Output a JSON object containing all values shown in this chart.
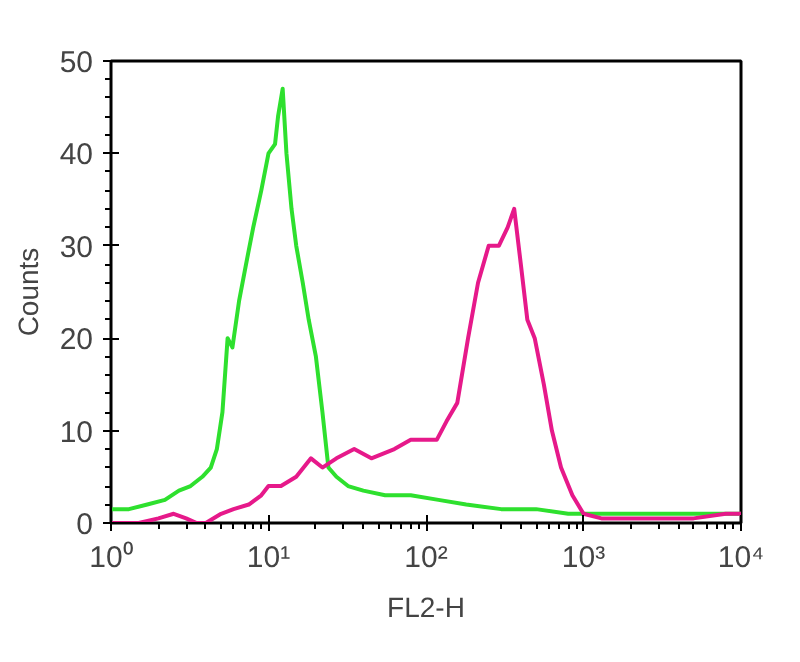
{
  "chart_data": {
    "type": "line",
    "xlabel": "FL2-H",
    "ylabel": "Counts",
    "log": "x",
    "grid": false,
    "marker": "none",
    "line_style": "solid",
    "xlim": [
      1,
      10000
    ],
    "ylim": [
      0,
      50
    ],
    "xticks": [
      {
        "value": 1,
        "label": "10⁰"
      },
      {
        "value": 10,
        "label": "10¹"
      },
      {
        "value": 100,
        "label": "10²"
      },
      {
        "value": 1000,
        "label": "10³"
      },
      {
        "value": 10000,
        "label": "10⁴"
      }
    ],
    "yticks": [
      0,
      10,
      20,
      30,
      40,
      50
    ],
    "series": [
      {
        "color": "#2ee02e",
        "x": [
          1,
          1.3,
          1.7,
          2.2,
          2.7,
          3.2,
          3.8,
          4.3,
          4.7,
          5.1,
          5.5,
          5.9,
          6.5,
          7.2,
          8,
          9,
          10,
          11,
          11.5,
          12.3,
          13,
          14,
          15,
          16.5,
          18,
          20,
          22,
          24,
          27,
          32,
          40,
          55,
          80,
          120,
          180,
          300,
          500,
          800,
          1500,
          3000,
          6000,
          10000
        ],
        "values": [
          1.5,
          1.5,
          2,
          2.5,
          3.5,
          4,
          5,
          6,
          8,
          12,
          20,
          19,
          24,
          28,
          32,
          36,
          40,
          41,
          44,
          47,
          40,
          34,
          30,
          26,
          22,
          18,
          12,
          6,
          5,
          4,
          3.5,
          3,
          3,
          2.5,
          2,
          1.5,
          1.5,
          1,
          1,
          1,
          1,
          1
        ]
      },
      {
        "color": "#e6198a",
        "x": [
          1,
          1.5,
          2,
          2.5,
          3,
          3.5,
          4,
          5,
          6,
          7.5,
          9,
          10,
          12,
          15,
          18.6,
          22,
          27,
          35,
          45,
          63,
          80,
          100,
          117,
          135,
          158,
          185,
          214,
          250,
          290,
          330,
          363,
          400,
          440,
          490,
          560,
          630,
          720,
          850,
          1000,
          1300,
          2000,
          3000,
          5000,
          8000,
          10000
        ],
        "values": [
          0,
          0,
          0.5,
          1,
          0.5,
          0,
          0,
          1,
          1.5,
          2,
          3,
          4,
          4,
          5,
          7,
          6,
          7,
          8,
          7,
          8,
          9,
          9,
          9,
          11,
          13,
          20,
          26,
          30,
          30,
          32,
          34,
          28,
          22,
          20,
          15,
          10,
          6,
          3,
          1,
          0.5,
          0.5,
          0.5,
          0.5,
          1,
          1
        ]
      }
    ]
  }
}
